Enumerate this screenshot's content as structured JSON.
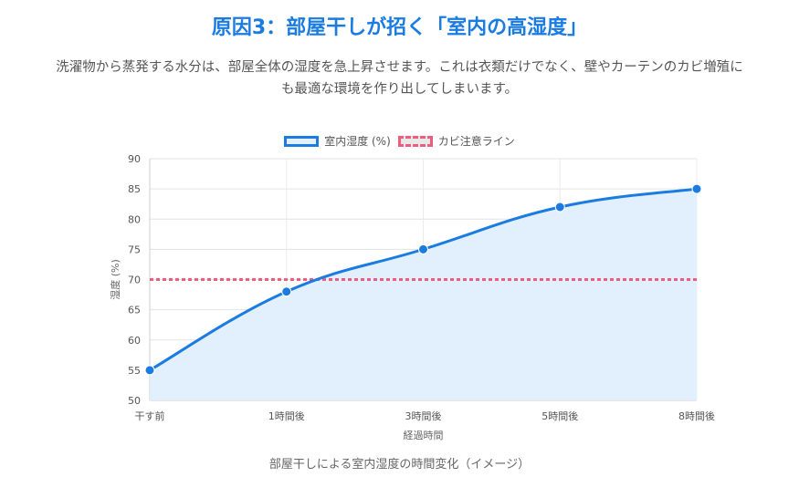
{
  "header": {
    "title": "原因3：部屋干しが招く「室内の高湿度」",
    "description": "洗濯物から蒸発する水分は、部屋全体の湿度を急上昇させます。これは衣類だけでなく、壁やカーテンのカビ増殖にも最適な環境を作り出してしまいます。"
  },
  "caption": "部屋干しによる室内湿度の時間変化（イメージ）",
  "chart_data": {
    "type": "line",
    "categories": [
      "干す前",
      "1時間後",
      "3時間後",
      "5時間後",
      "8時間後"
    ],
    "series": [
      {
        "name": "室内湿度 (%)",
        "values": [
          55,
          68,
          75,
          82,
          85
        ],
        "color": "#1a7be0",
        "fill": "#e2effc"
      },
      {
        "name": "カビ注意ライン",
        "values": [
          70,
          70,
          70,
          70,
          70
        ],
        "color": "#ee5c7e",
        "dashed": true
      }
    ],
    "xlabel": "経過時間",
    "ylabel": "湿度 (%)",
    "ylim": [
      50,
      90
    ],
    "yticks": [
      50,
      55,
      60,
      65,
      70,
      75,
      80,
      85,
      90
    ],
    "grid": true,
    "legend": "top-center"
  }
}
